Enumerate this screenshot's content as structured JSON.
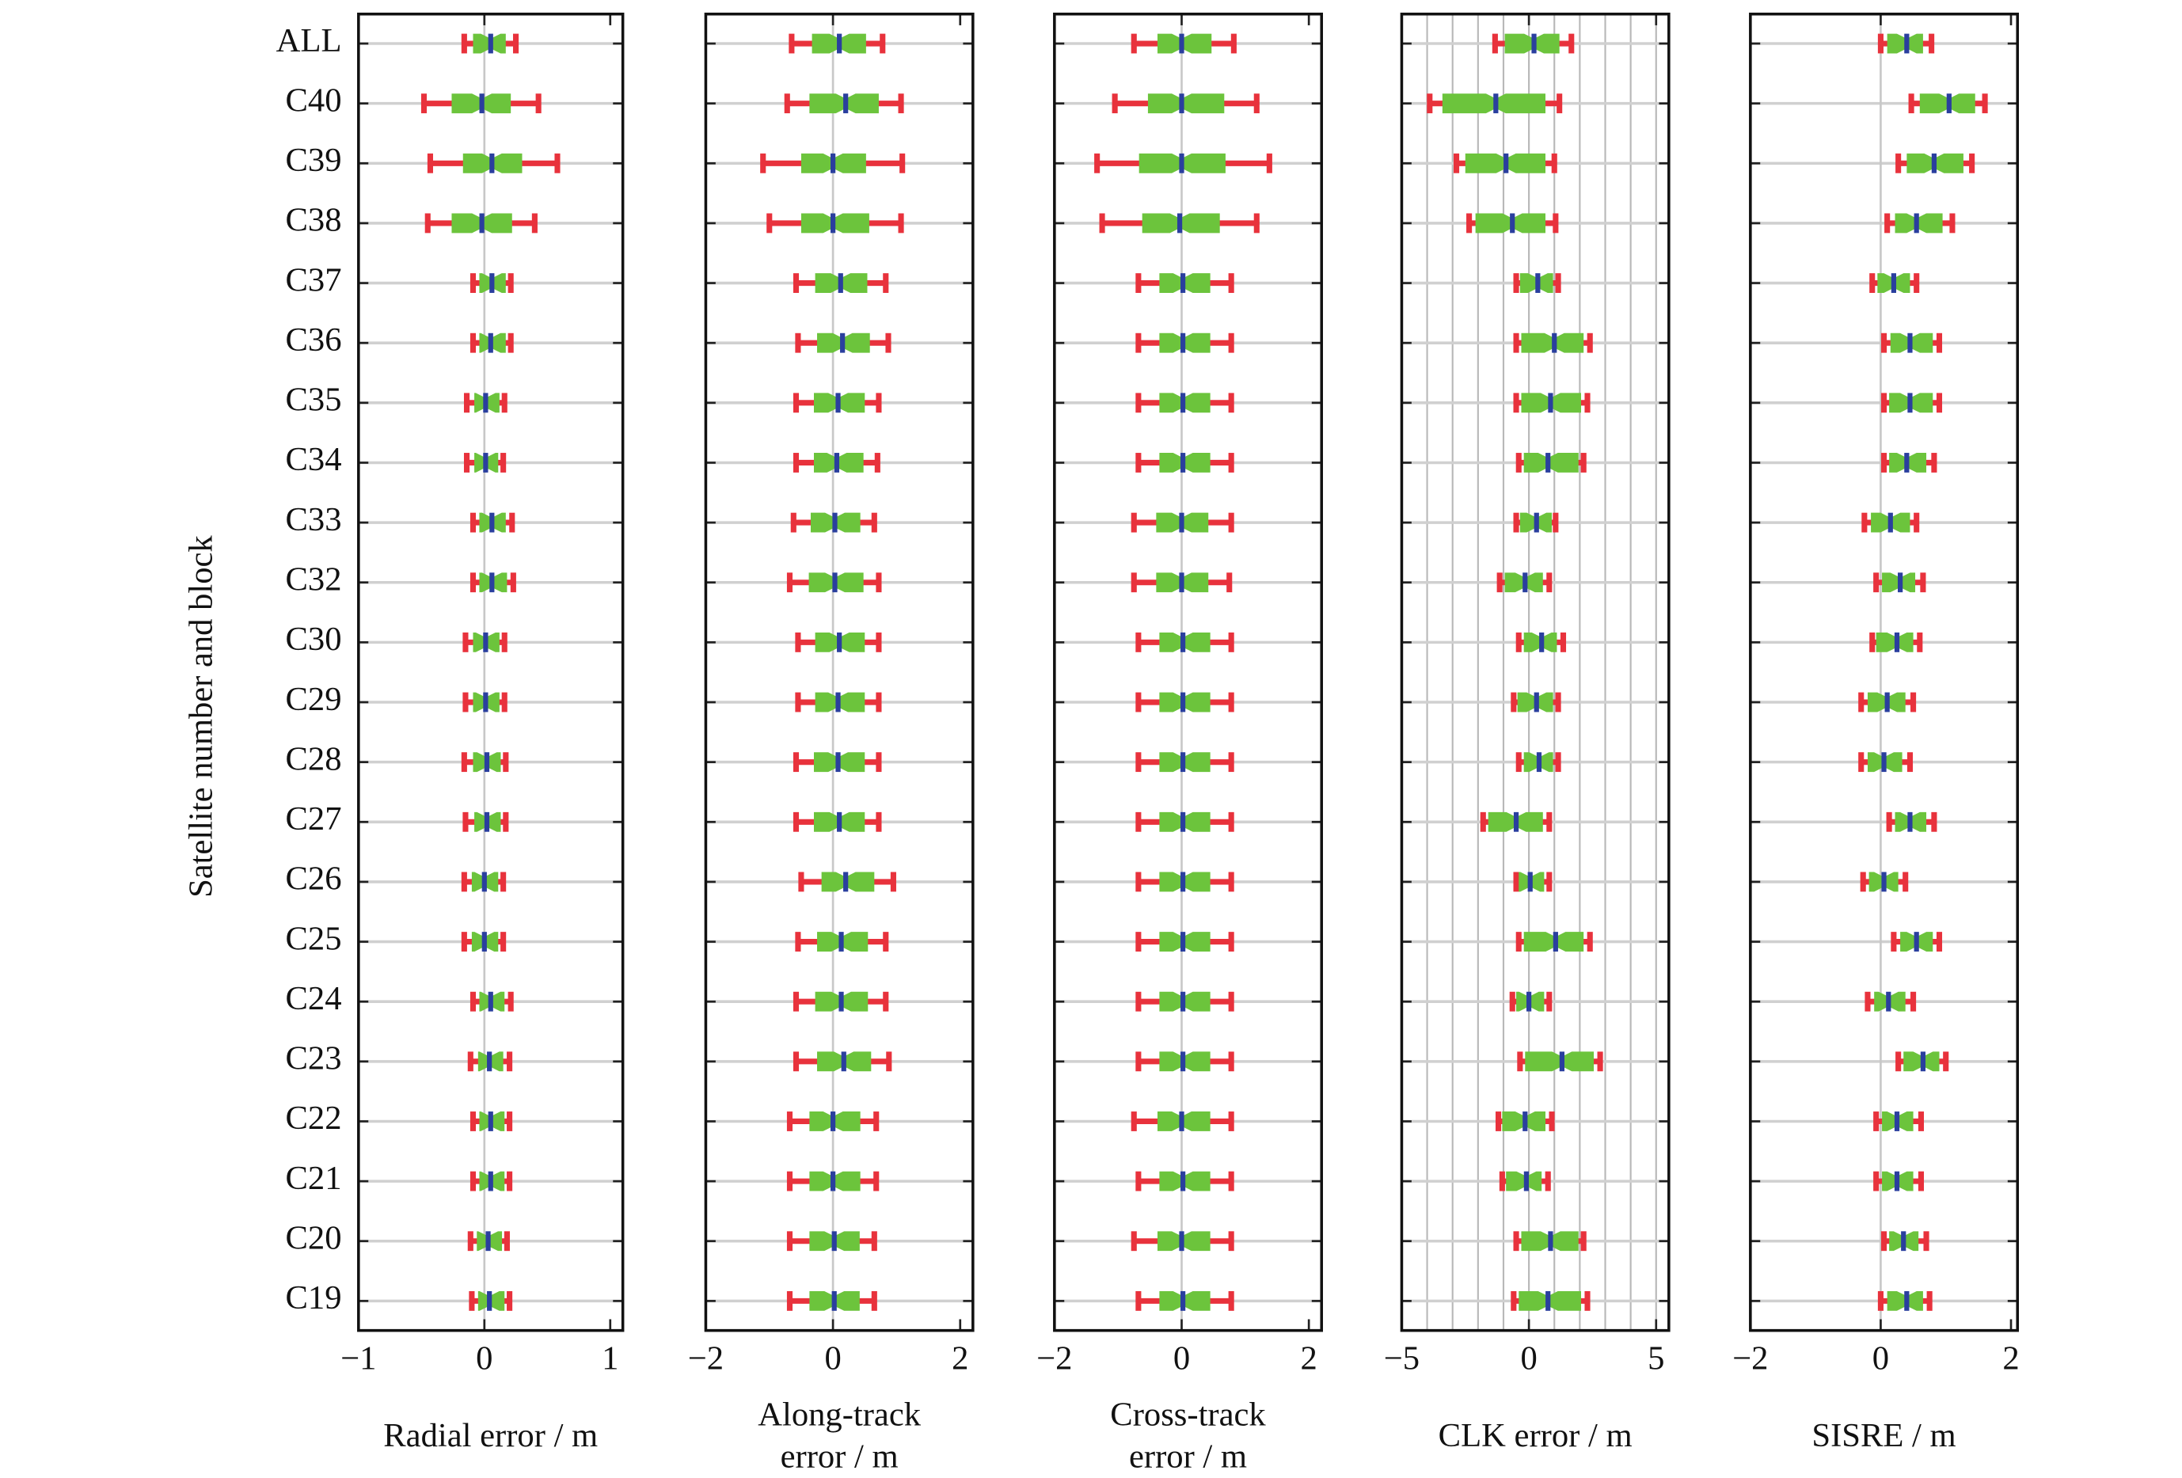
{
  "chart_data": {
    "type": "box",
    "ylabel": "Satellite number and block",
    "categories": [
      "ALL",
      "C40",
      "C39",
      "C38",
      "C37",
      "C36",
      "C35",
      "C34",
      "C33",
      "C32",
      "C30",
      "C29",
      "C28",
      "C27",
      "C26",
      "C25",
      "C24",
      "C23",
      "C22",
      "C21",
      "C20",
      "C19"
    ],
    "whisker_color": "#e8323c",
    "box_color": "#6cc43c",
    "median_color": "#2a3f9e",
    "panels": [
      {
        "xlabel": [
          "Radial error / m"
        ],
        "xlim": [
          -1,
          1.1
        ],
        "xticks": [
          {
            "value": -1,
            "label": "−1"
          },
          0,
          1
        ],
        "zero_line": true,
        "low": [
          -0.16,
          -0.48,
          -0.43,
          -0.45,
          -0.09,
          -0.09,
          -0.14,
          -0.14,
          -0.09,
          -0.09,
          -0.15,
          -0.15,
          -0.16,
          -0.15,
          -0.16,
          -0.16,
          -0.09,
          -0.11,
          -0.09,
          -0.09,
          -0.11,
          -0.1
        ],
        "q1": [
          -0.09,
          -0.26,
          -0.17,
          -0.26,
          -0.04,
          -0.04,
          -0.08,
          -0.08,
          -0.04,
          -0.04,
          -0.09,
          -0.09,
          -0.09,
          -0.08,
          -0.1,
          -0.1,
          -0.04,
          -0.05,
          -0.04,
          -0.04,
          -0.06,
          -0.05
        ],
        "median": [
          0.05,
          -0.02,
          0.06,
          -0.02,
          0.06,
          0.05,
          0.01,
          0.01,
          0.06,
          0.06,
          0.01,
          0.01,
          0.02,
          0.02,
          0,
          0,
          0.05,
          0.04,
          0.05,
          0.05,
          0.03,
          0.04
        ],
        "q3": [
          0.17,
          0.21,
          0.3,
          0.22,
          0.17,
          0.17,
          0.12,
          0.11,
          0.17,
          0.18,
          0.12,
          0.12,
          0.13,
          0.13,
          0.11,
          0.11,
          0.16,
          0.15,
          0.16,
          0.16,
          0.14,
          0.16
        ],
        "high": [
          0.25,
          0.43,
          0.58,
          0.4,
          0.21,
          0.21,
          0.16,
          0.15,
          0.22,
          0.23,
          0.16,
          0.16,
          0.17,
          0.17,
          0.15,
          0.15,
          0.21,
          0.2,
          0.2,
          0.2,
          0.18,
          0.2
        ]
      },
      {
        "xlabel": [
          "Along-track",
          "error / m"
        ],
        "xlim": [
          -2,
          2.2
        ],
        "xticks": [
          {
            "value": -2,
            "label": "−2"
          },
          0,
          2
        ],
        "zero_line": true,
        "low": [
          -0.65,
          -0.72,
          -1.1,
          -1.0,
          -0.58,
          -0.55,
          -0.58,
          -0.58,
          -0.62,
          -0.68,
          -0.55,
          -0.55,
          -0.58,
          -0.58,
          -0.5,
          -0.55,
          -0.58,
          -0.58,
          -0.68,
          -0.68,
          -0.68,
          -0.68
        ],
        "q1": [
          -0.33,
          -0.37,
          -0.5,
          -0.5,
          -0.28,
          -0.25,
          -0.3,
          -0.3,
          -0.35,
          -0.38,
          -0.28,
          -0.28,
          -0.3,
          -0.3,
          -0.18,
          -0.25,
          -0.28,
          -0.25,
          -0.37,
          -0.37,
          -0.37,
          -0.37
        ],
        "median": [
          0.1,
          0.2,
          0,
          0,
          0.12,
          0.15,
          0.08,
          0.06,
          0.03,
          0.03,
          0.1,
          0.08,
          0.08,
          0.1,
          0.2,
          0.13,
          0.13,
          0.17,
          0,
          0,
          0.02,
          0.02
        ],
        "q3": [
          0.52,
          0.72,
          0.52,
          0.57,
          0.54,
          0.58,
          0.5,
          0.48,
          0.43,
          0.48,
          0.5,
          0.5,
          0.5,
          0.5,
          0.65,
          0.55,
          0.55,
          0.6,
          0.43,
          0.43,
          0.42,
          0.42
        ],
        "high": [
          0.78,
          1.07,
          1.09,
          1.07,
          0.83,
          0.87,
          0.72,
          0.7,
          0.65,
          0.72,
          0.72,
          0.72,
          0.72,
          0.72,
          0.95,
          0.83,
          0.83,
          0.88,
          0.68,
          0.68,
          0.65,
          0.65
        ]
      },
      {
        "xlabel": [
          "Cross-track",
          "error / m"
        ],
        "xlim": [
          -2,
          2.2
        ],
        "xticks": [
          {
            "value": -2,
            "label": "−2"
          },
          0,
          2
        ],
        "zero_line": true,
        "low": [
          -0.75,
          -1.05,
          -1.33,
          -1.25,
          -0.68,
          -0.68,
          -0.68,
          -0.68,
          -0.75,
          -0.75,
          -0.68,
          -0.68,
          -0.68,
          -0.68,
          -0.68,
          -0.68,
          -0.68,
          -0.68,
          -0.75,
          -0.68,
          -0.75,
          -0.68
        ],
        "q1": [
          -0.38,
          -0.53,
          -0.67,
          -0.62,
          -0.35,
          -0.35,
          -0.35,
          -0.35,
          -0.4,
          -0.4,
          -0.35,
          -0.35,
          -0.35,
          -0.35,
          -0.35,
          -0.35,
          -0.35,
          -0.35,
          -0.38,
          -0.35,
          -0.38,
          -0.35
        ],
        "median": [
          0,
          0,
          0,
          -0.03,
          0.02,
          0.02,
          0.02,
          0.02,
          0,
          0,
          0.02,
          0.02,
          0.02,
          0.02,
          0.02,
          0.02,
          0.02,
          0.02,
          0,
          0.02,
          0,
          0.02
        ],
        "q3": [
          0.47,
          0.67,
          0.69,
          0.6,
          0.45,
          0.45,
          0.45,
          0.45,
          0.42,
          0.42,
          0.45,
          0.45,
          0.45,
          0.45,
          0.45,
          0.45,
          0.45,
          0.45,
          0.45,
          0.45,
          0.45,
          0.45
        ],
        "high": [
          0.82,
          1.18,
          1.38,
          1.18,
          0.78,
          0.78,
          0.78,
          0.78,
          0.78,
          0.75,
          0.78,
          0.78,
          0.78,
          0.78,
          0.78,
          0.78,
          0.78,
          0.78,
          0.78,
          0.78,
          0.78,
          0.78
        ]
      },
      {
        "xlabel": [
          "CLK error / m"
        ],
        "xlim": [
          -5,
          5.5
        ],
        "xticks": [
          {
            "value": -5,
            "label": "−5"
          },
          0,
          5
        ],
        "grid_step": 1,
        "low": [
          -1.33,
          -3.9,
          -2.85,
          -2.35,
          -0.5,
          -0.5,
          -0.5,
          -0.4,
          -0.5,
          -1.15,
          -0.4,
          -0.6,
          -0.4,
          -1.8,
          -0.5,
          -0.4,
          -0.65,
          -0.35,
          -1.2,
          -1.05,
          -0.5,
          -0.6
        ],
        "q1": [
          -0.95,
          -3.4,
          -2.5,
          -2.1,
          -0.35,
          -0.3,
          -0.3,
          -0.2,
          -0.35,
          -0.95,
          -0.2,
          -0.45,
          -0.2,
          -1.6,
          -0.4,
          -0.2,
          -0.5,
          -0.15,
          -1.05,
          -0.9,
          -0.3,
          -0.4
        ],
        "median": [
          0.2,
          -1.3,
          -0.9,
          -0.65,
          0.35,
          1.0,
          0.85,
          0.75,
          0.3,
          -0.15,
          0.5,
          0.3,
          0.4,
          -0.5,
          0.05,
          1.05,
          0,
          1.3,
          -0.15,
          -0.1,
          0.85,
          0.75
        ],
        "q3": [
          1.2,
          0.65,
          0.65,
          0.65,
          0.95,
          2.15,
          2.05,
          1.95,
          0.9,
          0.55,
          1.1,
          0.95,
          0.95,
          0.55,
          0.6,
          2.15,
          0.6,
          2.55,
          0.65,
          0.5,
          1.95,
          2.05
        ],
        "high": [
          1.67,
          1.2,
          1.0,
          1.05,
          1.15,
          2.4,
          2.3,
          2.15,
          1.05,
          0.8,
          1.35,
          1.15,
          1.15,
          0.8,
          0.8,
          2.4,
          0.8,
          2.8,
          0.9,
          0.75,
          2.15,
          2.3
        ]
      },
      {
        "xlabel": [
          "SISRE / m"
        ],
        "xlim": [
          -2,
          2.1
        ],
        "xticks": [
          {
            "value": -2,
            "label": "−2"
          },
          0,
          2
        ],
        "zero_line": true,
        "low": [
          0,
          0.47,
          0.27,
          0.1,
          -0.13,
          0.05,
          0.05,
          0.05,
          -0.25,
          -0.07,
          -0.13,
          -0.3,
          -0.3,
          0.13,
          -0.27,
          0.2,
          -0.2,
          0.27,
          -0.07,
          -0.07,
          0.05,
          0
        ],
        "q1": [
          0.1,
          0.6,
          0.4,
          0.22,
          -0.05,
          0.15,
          0.13,
          0.13,
          -0.15,
          0.02,
          -0.07,
          -0.2,
          -0.2,
          0.22,
          -0.18,
          0.3,
          -0.1,
          0.35,
          0.02,
          0.02,
          0.13,
          0.1
        ],
        "median": [
          0.4,
          1.05,
          0.82,
          0.55,
          0.2,
          0.45,
          0.45,
          0.4,
          0.15,
          0.3,
          0.25,
          0.1,
          0.05,
          0.45,
          0.05,
          0.55,
          0.12,
          0.65,
          0.25,
          0.25,
          0.35,
          0.4
        ],
        "q3": [
          0.65,
          1.45,
          1.27,
          0.95,
          0.45,
          0.8,
          0.8,
          0.7,
          0.45,
          0.53,
          0.5,
          0.38,
          0.33,
          0.7,
          0.27,
          0.8,
          0.38,
          0.9,
          0.5,
          0.5,
          0.58,
          0.65
        ],
        "high": [
          0.78,
          1.6,
          1.4,
          1.1,
          0.55,
          0.9,
          0.9,
          0.82,
          0.55,
          0.65,
          0.6,
          0.5,
          0.45,
          0.82,
          0.38,
          0.9,
          0.5,
          1.0,
          0.62,
          0.62,
          0.7,
          0.75
        ]
      }
    ]
  }
}
